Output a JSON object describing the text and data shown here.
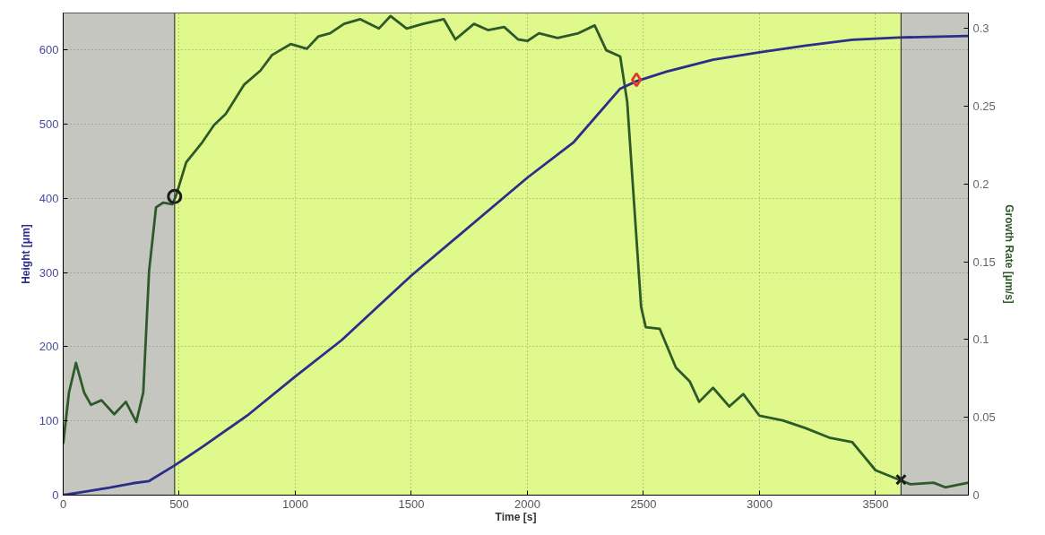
{
  "chart_data": {
    "type": "line",
    "xlabel": "Time [s]",
    "ylabel": "Height [μm]",
    "y2label": "Growth Rate [μm/s]",
    "xlim": [
      0,
      3900
    ],
    "xticks": [
      0,
      500,
      1000,
      1500,
      2000,
      2500,
      3000,
      3500
    ],
    "ylim": [
      0,
      650
    ],
    "yticks": [
      0,
      100,
      200,
      300,
      400,
      500,
      600
    ],
    "y2lim": [
      0,
      0.31
    ],
    "y2ticks": [
      0,
      0.05,
      0.1,
      0.15,
      0.2,
      0.25,
      0.3
    ],
    "grid": true,
    "line_style": "solid",
    "bands": [
      {
        "axis": "x",
        "from": 0,
        "to": 480,
        "color": "#c6c6c0"
      },
      {
        "axis": "x",
        "from": 480,
        "to": 3610,
        "color": "#e0f98c"
      },
      {
        "axis": "x",
        "from": 3610,
        "to": 3900,
        "color": "#c6c6c0"
      }
    ],
    "ref_lines": [
      {
        "axis": "x",
        "value": 480,
        "color": "#3a3a3a"
      },
      {
        "axis": "x",
        "value": 3610,
        "color": "#3a3a3a"
      }
    ],
    "series": [
      {
        "color": "#2e5a2a",
        "axis": "y2",
        "x": [
          0,
          25,
          55,
          90,
          120,
          165,
          220,
          270,
          315,
          345,
          370,
          400,
          430,
          470,
          485,
          530,
          600,
          650,
          700,
          780,
          850,
          900,
          980,
          1050,
          1100,
          1150,
          1210,
          1280,
          1360,
          1410,
          1480,
          1550,
          1640,
          1690,
          1770,
          1830,
          1900,
          1960,
          2000,
          2050,
          2130,
          2220,
          2290,
          2340,
          2400,
          2430,
          2460,
          2490,
          2510,
          2570,
          2640,
          2700,
          2740,
          2800,
          2870,
          2930,
          3000,
          3100,
          3200,
          3300,
          3400,
          3500,
          3610,
          3650,
          3750,
          3800,
          3900
        ],
        "values": [
          0.033,
          0.066,
          0.085,
          0.066,
          0.058,
          0.061,
          0.052,
          0.06,
          0.047,
          0.066,
          0.144,
          0.185,
          0.188,
          0.187,
          0.192,
          0.214,
          0.227,
          0.238,
          0.245,
          0.264,
          0.273,
          0.283,
          0.29,
          0.287,
          0.295,
          0.297,
          0.303,
          0.306,
          0.3,
          0.308,
          0.3,
          0.303,
          0.306,
          0.293,
          0.303,
          0.299,
          0.301,
          0.293,
          0.292,
          0.297,
          0.294,
          0.297,
          0.302,
          0.286,
          0.282,
          0.253,
          0.187,
          0.121,
          0.108,
          0.107,
          0.082,
          0.073,
          0.06,
          0.069,
          0.057,
          0.065,
          0.051,
          0.048,
          0.043,
          0.037,
          0.034,
          0.016,
          0.0094,
          0.007,
          0.008,
          0.005,
          0.008
        ]
      },
      {
        "color": "#2a2f8a",
        "x": [
          0,
          100,
          200,
          300,
          370,
          480,
          600,
          800,
          1000,
          1200,
          1500,
          2000,
          2200,
          2400,
          2470,
          2600,
          2800,
          3000,
          3200,
          3400,
          3600,
          3900
        ],
        "values": [
          0,
          5,
          10,
          16,
          19,
          40,
          65,
          109,
          160,
          209,
          296,
          428,
          476,
          548,
          558,
          571,
          587,
          597,
          606,
          614,
          617,
          619
        ]
      },
      {
        "type": "scatter",
        "marker": "circle",
        "color": "#1a1a1a",
        "axis": "y2",
        "x": [
          480
        ],
        "values": [
          0.192
        ]
      },
      {
        "type": "scatter",
        "marker": "diamond",
        "color": "#e03a2a",
        "x": [
          2470
        ],
        "values": [
          560
        ]
      },
      {
        "type": "scatter",
        "marker": "cross",
        "color": "#1a1a1a",
        "axis": "y2",
        "x": [
          3610
        ],
        "values": [
          0.01
        ]
      }
    ]
  }
}
